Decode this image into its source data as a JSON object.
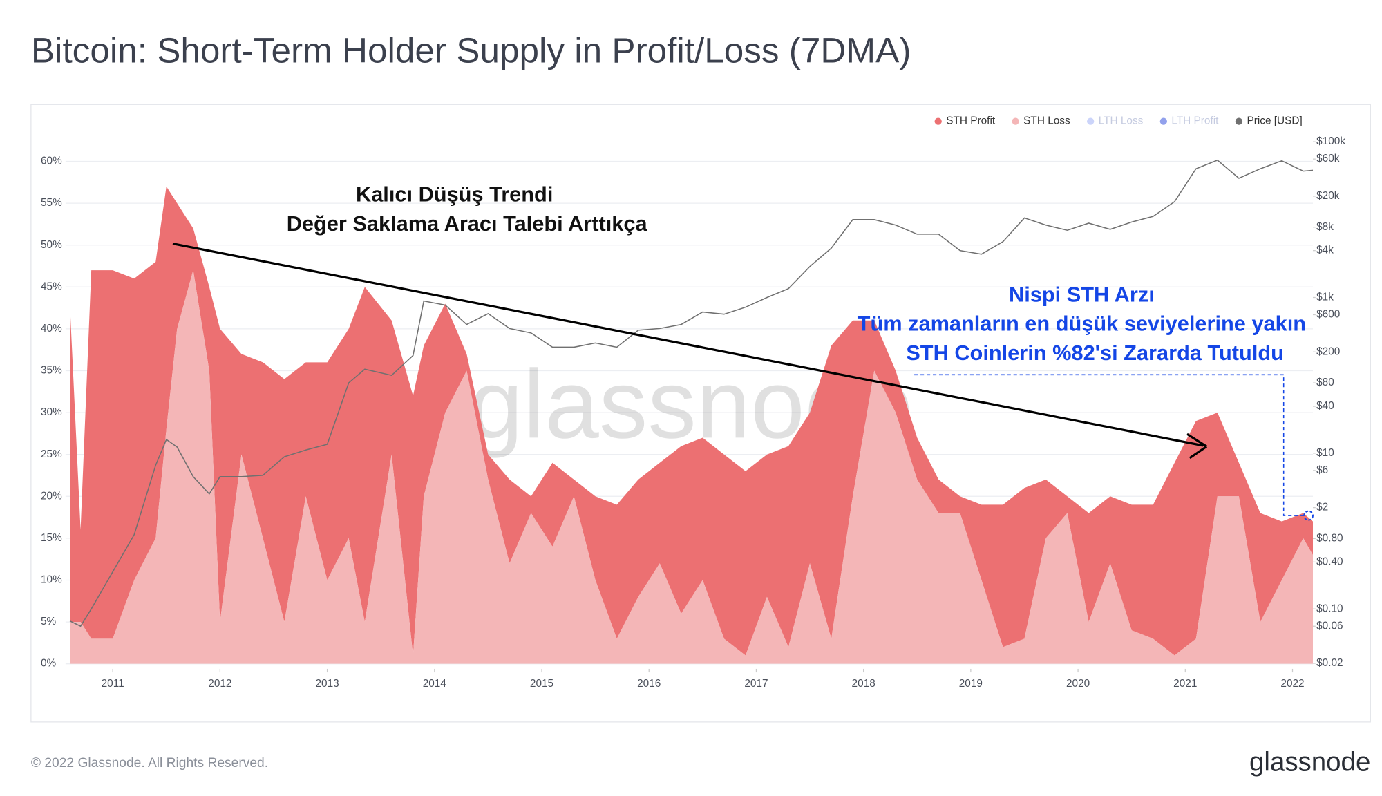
{
  "chart_data": {
    "type": "stacked_area",
    "title": "Bitcoin: Short-Term Holder Supply in Profit/Loss (7DMA)",
    "watermark": "glassnode",
    "footer": "© 2022 Glassnode. All Rights Reserved.",
    "logo": "glassnode",
    "annotations": [
      "Kalıcı Düşüş Trendi",
      "Değer Saklama Aracı Talebi Arttıkça",
      "Nispi STH Arzı",
      "Tüm zamanların en düşük seviyelerine yakın",
      "STH Coinlerin %82'si Zararda Tutuldu"
    ],
    "x": [
      2010.6,
      2010.7,
      2010.8,
      2011.0,
      2011.2,
      2011.4,
      2011.5,
      2011.6,
      2011.75,
      2011.9,
      2012.0,
      2012.2,
      2012.4,
      2012.6,
      2012.8,
      2013.0,
      2013.2,
      2013.35,
      2013.6,
      2013.8,
      2013.9,
      2014.1,
      2014.3,
      2014.5,
      2014.7,
      2014.9,
      2015.1,
      2015.3,
      2015.5,
      2015.7,
      2015.9,
      2016.1,
      2016.3,
      2016.5,
      2016.7,
      2016.9,
      2017.1,
      2017.3,
      2017.5,
      2017.7,
      2017.9,
      2018.1,
      2018.3,
      2018.5,
      2018.7,
      2018.9,
      2019.1,
      2019.3,
      2019.5,
      2019.7,
      2019.9,
      2020.1,
      2020.3,
      2020.5,
      2020.7,
      2020.9,
      2021.1,
      2021.3,
      2021.5,
      2021.7,
      2021.9,
      2022.1,
      2022.19
    ],
    "series": [
      {
        "name": "STH Profit",
        "color": "#ec7072",
        "values": [
          38,
          11,
          44,
          44,
          36,
          33,
          29,
          15,
          5,
          10,
          35,
          12,
          21,
          29,
          16,
          26,
          25,
          40,
          16,
          31,
          18,
          13,
          2,
          3,
          10,
          2,
          10,
          2,
          10,
          16,
          14,
          12,
          20,
          17,
          22,
          22,
          17,
          24,
          18,
          35,
          21,
          6,
          5,
          5,
          4,
          2,
          9,
          17,
          18,
          7,
          2,
          13,
          8,
          15,
          16,
          23,
          26,
          10,
          4,
          13,
          7,
          3,
          4
        ]
      },
      {
        "name": "STH Loss",
        "color": "#f4b6b7",
        "values": [
          5,
          5,
          3,
          3,
          10,
          15,
          28,
          40,
          47,
          35,
          5,
          25,
          15,
          5,
          20,
          10,
          15,
          5,
          25,
          1,
          20,
          30,
          35,
          22,
          12,
          18,
          14,
          20,
          10,
          3,
          8,
          12,
          6,
          10,
          3,
          1,
          8,
          2,
          12,
          3,
          20,
          35,
          30,
          22,
          18,
          18,
          10,
          2,
          3,
          15,
          18,
          5,
          12,
          4,
          3,
          1,
          3,
          20,
          20,
          5,
          10,
          15,
          13
        ]
      },
      {
        "name": "Price [USD]",
        "color": "#707070",
        "axis": "y2",
        "values": [
          0.07,
          0.06,
          0.1,
          0.3,
          0.9,
          7,
          15,
          12,
          5,
          3,
          5,
          5,
          5.2,
          9,
          11,
          13,
          80,
          120,
          100,
          180,
          900,
          800,
          450,
          620,
          400,
          350,
          230,
          230,
          260,
          230,
          380,
          400,
          450,
          650,
          610,
          750,
          1000,
          1300,
          2500,
          4300,
          10000,
          10000,
          8500,
          6500,
          6500,
          4000,
          3600,
          5200,
          10500,
          8500,
          7300,
          9000,
          7500,
          9300,
          11000,
          17000,
          45000,
          58000,
          34000,
          45000,
          57000,
          42000,
          43000
        ]
      }
    ],
    "hidden_series": [
      {
        "name": "LTH Loss",
        "color": "#a8b8f6"
      },
      {
        "name": "LTH Profit",
        "color": "#4a63e0"
      }
    ],
    "xlim": [
      2010.56,
      2022.19
    ],
    "xticks": [
      2011,
      2012,
      2013,
      2014,
      2015,
      2016,
      2017,
      2018,
      2019,
      2020,
      2021,
      2022
    ],
    "ylim": [
      -0.6,
      63.4
    ],
    "yticks": [
      {
        "value": 0,
        "label": "0%"
      },
      {
        "value": 5,
        "label": "5%"
      },
      {
        "value": 10,
        "label": "10%"
      },
      {
        "value": 15,
        "label": "15%"
      },
      {
        "value": 20,
        "label": "20%"
      },
      {
        "value": 25,
        "label": "25%"
      },
      {
        "value": 30,
        "label": "30%"
      },
      {
        "value": 35,
        "label": "35%"
      },
      {
        "value": 40,
        "label": "40%"
      },
      {
        "value": 45,
        "label": "45%"
      },
      {
        "value": 50,
        "label": "50%"
      },
      {
        "value": 55,
        "label": "55%"
      },
      {
        "value": 60,
        "label": "60%"
      }
    ],
    "y2lim": [
      0.017,
      130000
    ],
    "y2log": true,
    "y2ticks": [
      {
        "value": 100000,
        "label": "$100k"
      },
      {
        "value": 60000,
        "label": "$60k"
      },
      {
        "value": 20000,
        "label": "$20k"
      },
      {
        "value": 8000,
        "label": "$8k"
      },
      {
        "value": 4000,
        "label": "$4k"
      },
      {
        "value": 1000,
        "label": "$1k"
      },
      {
        "value": 600,
        "label": "$600"
      },
      {
        "value": 200,
        "label": "$200"
      },
      {
        "value": 80,
        "label": "$80"
      },
      {
        "value": 40,
        "label": "$40"
      },
      {
        "value": 10,
        "label": "$10"
      },
      {
        "value": 6,
        "label": "$6"
      },
      {
        "value": 2,
        "label": "$2"
      },
      {
        "value": 0.8,
        "label": "$0.80"
      },
      {
        "value": 0.4,
        "label": "$0.40"
      },
      {
        "value": 0.1,
        "label": "$0.10"
      },
      {
        "value": 0.06,
        "label": "$0.06"
      },
      {
        "value": 0.02,
        "label": "$0.02"
      }
    ],
    "grid": true
  }
}
